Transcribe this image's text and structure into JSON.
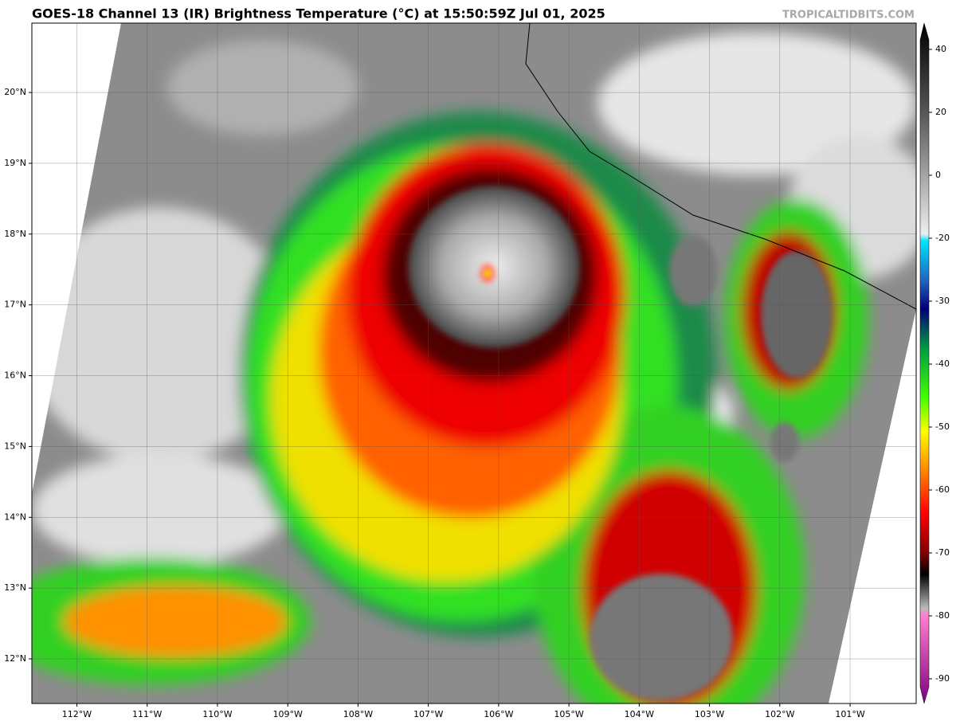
{
  "chart_data": {
    "type": "map",
    "title": "GOES-18 Channel 13 (IR) Brightness Temperature (°C) at 15:50:59Z Jul 01, 2025",
    "watermark": "TROPICALTIDBITS.COM",
    "xlim": [
      -112.64,
      -100.06
    ],
    "ylim": [
      11.37,
      20.98
    ],
    "xticks": [
      {
        "value": -112,
        "label": "112°W"
      },
      {
        "value": -111,
        "label": "111°W"
      },
      {
        "value": -110,
        "label": "110°W"
      },
      {
        "value": -109,
        "label": "109°W"
      },
      {
        "value": -108,
        "label": "108°W"
      },
      {
        "value": -107,
        "label": "107°W"
      },
      {
        "value": -106,
        "label": "106°W"
      },
      {
        "value": -105,
        "label": "105°W"
      },
      {
        "value": -104,
        "label": "104°W"
      },
      {
        "value": -103,
        "label": "103°W"
      },
      {
        "value": -102,
        "label": "102°W"
      },
      {
        "value": -101,
        "label": "101°W"
      }
    ],
    "yticks": [
      {
        "value": 20,
        "label": "20°N"
      },
      {
        "value": 19,
        "label": "19°N"
      },
      {
        "value": 18,
        "label": "18°N"
      },
      {
        "value": 17,
        "label": "17°N"
      },
      {
        "value": 16,
        "label": "16°N"
      },
      {
        "value": 15,
        "label": "15°N"
      },
      {
        "value": 14,
        "label": "14°N"
      },
      {
        "value": 13,
        "label": "13°N"
      },
      {
        "value": 12,
        "label": "12°N"
      }
    ],
    "grid": true,
    "colorbar_ticks": [
      40,
      20,
      0,
      -20,
      -30,
      -40,
      -50,
      -60,
      -70,
      -80,
      -90
    ]
  }
}
